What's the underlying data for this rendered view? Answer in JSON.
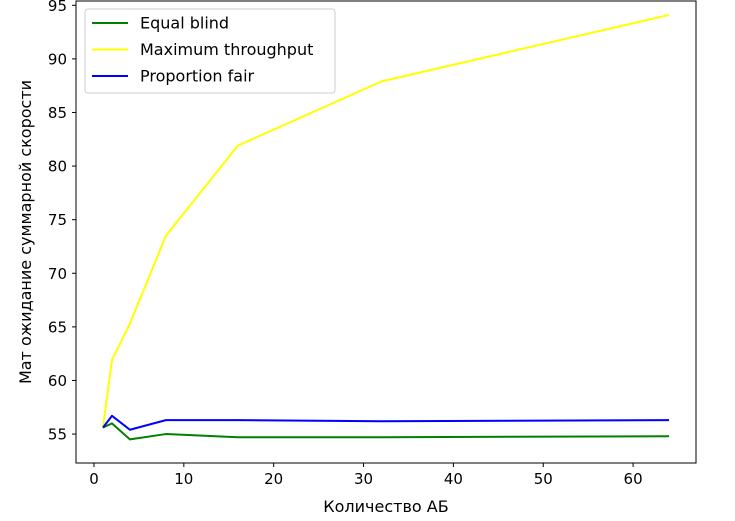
{
  "chart_data": {
    "type": "line",
    "title": "",
    "xlabel": "Количество АБ",
    "ylabel": "Мат ожидание суммарной скорости",
    "xlim": [
      -2,
      67
    ],
    "ylim": [
      52.3,
      95.4
    ],
    "xticks": [
      0,
      10,
      20,
      30,
      40,
      50,
      60
    ],
    "yticks": [
      55,
      60,
      65,
      70,
      75,
      80,
      85,
      90,
      95
    ],
    "grid": false,
    "legend_position": "upper-left",
    "series": [
      {
        "name": "Equal blind",
        "color": "#008000",
        "x": [
          1,
          2,
          4,
          8,
          16,
          32,
          64
        ],
        "y": [
          55.6,
          56.0,
          54.5,
          55.0,
          54.7,
          54.7,
          54.8
        ]
      },
      {
        "name": "Maximum throughput",
        "color": "#ffff00",
        "x": [
          1,
          2,
          4,
          8,
          16,
          32,
          64
        ],
        "y": [
          55.6,
          61.9,
          65.3,
          73.5,
          81.9,
          87.9,
          94.1
        ]
      },
      {
        "name": "Proportion fair",
        "color": "#0000ff",
        "x": [
          1,
          2,
          4,
          8,
          16,
          32,
          64
        ],
        "y": [
          55.6,
          56.7,
          55.4,
          56.3,
          56.3,
          56.2,
          56.3
        ]
      }
    ]
  }
}
